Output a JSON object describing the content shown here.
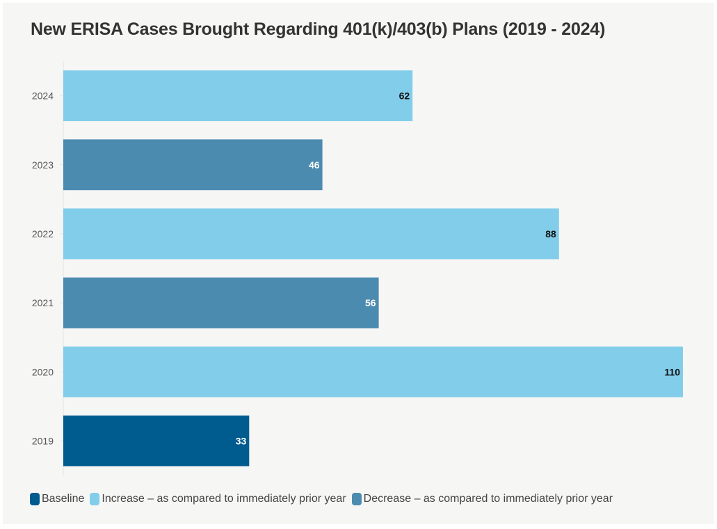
{
  "chart_data": {
    "type": "bar",
    "orientation": "horizontal",
    "title": "New ERISA Cases Brought Regarding 401(k)/403(b) Plans (2019 - 2024)",
    "xlabel": "",
    "ylabel": "",
    "categories": [
      "2024",
      "2023",
      "2022",
      "2021",
      "2020",
      "2019"
    ],
    "values": [
      62,
      46,
      88,
      56,
      110,
      33
    ],
    "bar_types": [
      "increase",
      "decrease",
      "increase",
      "decrease",
      "increase",
      "baseline"
    ],
    "data_labels": [
      "62",
      "46",
      "88",
      "56",
      "110",
      "33"
    ],
    "xlim": [
      0,
      110
    ],
    "grid": false,
    "legend": {
      "placement": "bottom-left",
      "entries": [
        {
          "key": "baseline",
          "label": "Baseline",
          "color": "#005b8f"
        },
        {
          "key": "increase",
          "label": "Increase – as compared to immediately prior year",
          "color": "#82cdea"
        },
        {
          "key": "decrease",
          "label": "Decrease – as compared to immediately prior year",
          "color": "#4b8bb0"
        }
      ]
    },
    "label_colors": {
      "baseline": "#ffffff",
      "increase": "#111111",
      "decrease": "#ffffff"
    }
  }
}
